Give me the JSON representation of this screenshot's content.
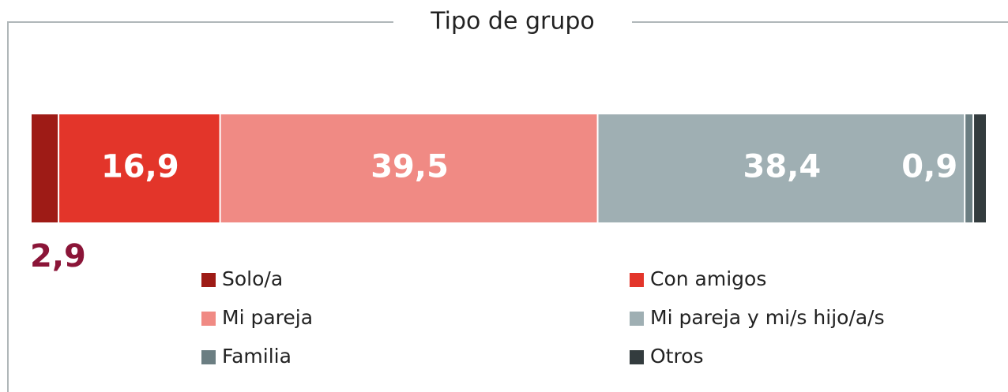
{
  "chart_data": {
    "type": "stacked_bar_100",
    "title": "Tipo de grupo",
    "xlim": [
      0,
      100
    ],
    "series": [
      {
        "name": "Solo/a",
        "color": "#9e1b16",
        "values": [
          2.9
        ],
        "value_labels": [
          "2,9"
        ]
      },
      {
        "name": "Con amigos",
        "color": "#e3352a",
        "values": [
          16.9
        ],
        "value_labels": [
          "16,9"
        ]
      },
      {
        "name": "Mi pareja",
        "color": "#f08a84",
        "values": [
          39.5
        ],
        "value_labels": [
          "39,5"
        ]
      },
      {
        "name": "Mi pareja y mi/s hijo/a/s",
        "color": "#9fafb3",
        "values": [
          38.4
        ],
        "value_labels": [
          "38,4"
        ]
      },
      {
        "name": "Familia",
        "color": "#6b7e82",
        "values": [
          0.9
        ],
        "value_labels": [
          "0,9"
        ]
      },
      {
        "name": "Otros",
        "color": "#333c3e",
        "values": [
          1.4
        ],
        "value_labels": [
          null
        ]
      }
    ]
  }
}
